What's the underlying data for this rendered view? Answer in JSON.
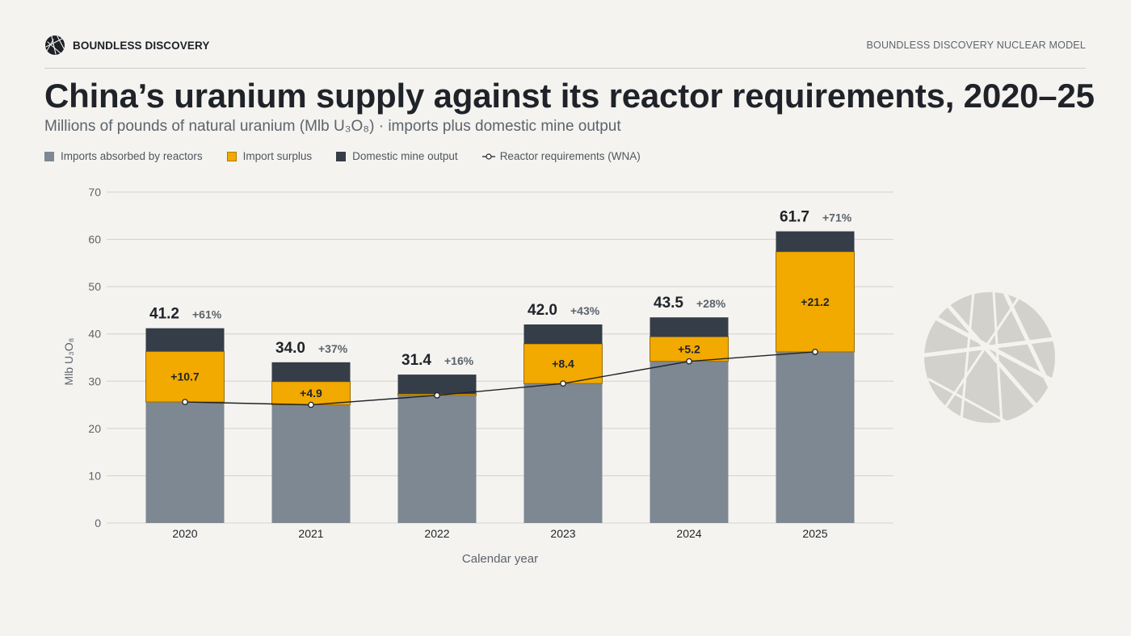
{
  "header": {
    "brand": "BOUNDLESS DISCOVERY",
    "right_label": "BOUNDLESS DISCOVERY NUCLEAR MODEL"
  },
  "title": "China’s uranium supply against its reactor requirements, 2020–25",
  "subtitle": "Millions of pounds of natural uranium (Mlb U₃O₈) · imports plus domestic mine output",
  "legend": [
    {
      "label": "Imports absorbed by reactors",
      "color": "#7d8893"
    },
    {
      "label": "Import surplus",
      "color": "#f2a900"
    },
    {
      "label": "Domestic mine output",
      "color": "#353d48"
    },
    {
      "label": "Reactor requirements (WNA)",
      "color": "#1f2329"
    }
  ],
  "chart_data": {
    "type": "bar",
    "stacked": true,
    "categories": [
      "2020",
      "2021",
      "2022",
      "2023",
      "2024",
      "2025"
    ],
    "series": [
      {
        "name": "Imports absorbed by reactors",
        "values": [
          25.6,
          25.0,
          27.0,
          29.5,
          34.2,
          36.2
        ],
        "color": "#7d8893"
      },
      {
        "name": "Import surplus",
        "values": [
          10.7,
          4.9,
          0.3,
          8.4,
          5.2,
          21.2
        ],
        "color": "#f2a900"
      },
      {
        "name": "Domestic mine output",
        "values": [
          4.9,
          4.1,
          4.1,
          4.1,
          4.1,
          4.3
        ],
        "color": "#353d48"
      }
    ],
    "line_series": {
      "name": "Reactor requirements (WNA)",
      "values": [
        25.6,
        25.0,
        27.0,
        29.5,
        34.2,
        36.2
      ]
    },
    "surplus_labels": [
      "+10.7",
      "+4.9",
      "",
      "+8.4",
      "+5.2",
      "+21.2"
    ],
    "totals": [
      "41.2",
      "34.0",
      "31.4",
      "42.0",
      "43.5",
      "61.7"
    ],
    "pct_labels": [
      "+61%",
      "+37%",
      "+16%",
      "+43%",
      "+28%",
      "+71%"
    ],
    "xlabel": "Calendar year",
    "ylabel": "Mlb U₃O₈",
    "ylim": [
      0,
      70
    ],
    "yticks": [
      0,
      10,
      20,
      30,
      40,
      50,
      60,
      70
    ],
    "grid": true,
    "legend_position": "top-left"
  }
}
